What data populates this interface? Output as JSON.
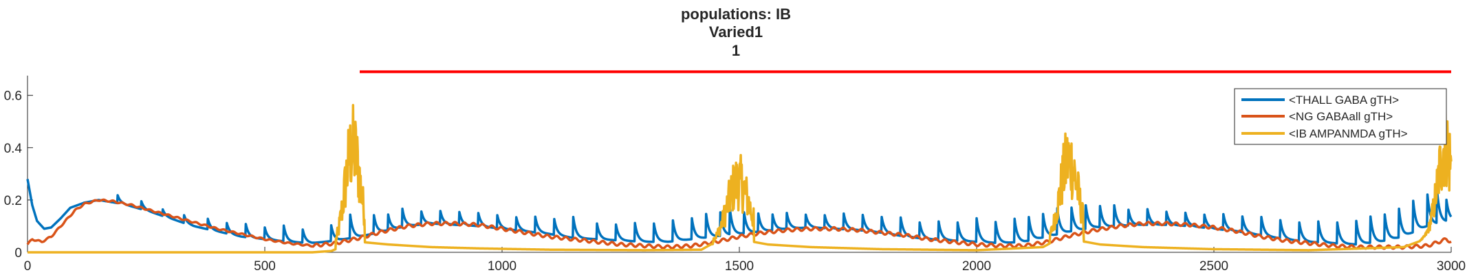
{
  "chart_data": {
    "type": "line",
    "title_lines": [
      "populations: IB",
      "Varied1",
      "1"
    ],
    "xlabel": "",
    "ylabel": "",
    "xlim": [
      0,
      3000
    ],
    "ylim": [
      0,
      0.72
    ],
    "x_ticks": [
      0,
      500,
      1000,
      1500,
      2000,
      2500,
      3000
    ],
    "x_tick_labels": [
      "0",
      "500",
      "1000",
      "1500",
      "2000",
      "2500",
      "3000"
    ],
    "y_ticks": [
      0,
      0.2,
      0.4,
      0.6
    ],
    "y_tick_labels": [
      "0",
      "0.2",
      "0.4",
      "0.6"
    ],
    "grid": false,
    "legend_position": "top-right",
    "event_bar": {
      "x_start": 700,
      "x_end": 3000,
      "y": 0.69,
      "color": "#ff0000"
    },
    "series": [
      {
        "name": "<THALL GABA gTH>",
        "color": "#0072BD",
        "baseline": {
          "x": [
            0,
            10,
            20,
            35,
            50,
            70,
            90,
            120,
            150,
            200,
            250,
            300,
            350,
            400,
            450,
            500,
            550,
            600,
            650,
            700,
            750,
            800,
            850,
            900,
            950,
            1000,
            1050,
            1100,
            1150,
            1200,
            1250,
            1300,
            1350,
            1400,
            1450,
            1500,
            1550,
            1600,
            1650,
            1700,
            1750,
            1800,
            1850,
            1900,
            1950,
            2000,
            2050,
            2100,
            2150,
            2200,
            2250,
            2300,
            2350,
            2400,
            2450,
            2500,
            2550,
            2600,
            2650,
            2700,
            2750,
            2800,
            2850,
            2900,
            2950,
            3000
          ],
          "y": [
            0.28,
            0.18,
            0.12,
            0.09,
            0.095,
            0.13,
            0.17,
            0.19,
            0.2,
            0.185,
            0.16,
            0.13,
            0.1,
            0.08,
            0.06,
            0.05,
            0.04,
            0.035,
            0.045,
            0.06,
            0.08,
            0.1,
            0.11,
            0.105,
            0.1,
            0.09,
            0.08,
            0.07,
            0.055,
            0.05,
            0.045,
            0.04,
            0.04,
            0.05,
            0.06,
            0.07,
            0.08,
            0.09,
            0.095,
            0.09,
            0.085,
            0.075,
            0.06,
            0.05,
            0.045,
            0.04,
            0.035,
            0.04,
            0.06,
            0.08,
            0.095,
            0.1,
            0.105,
            0.105,
            0.1,
            0.09,
            0.08,
            0.065,
            0.05,
            0.04,
            0.035,
            0.03,
            0.04,
            0.06,
            0.1,
            0.12
          ]
        },
        "spikes": {
          "x": [
            190,
            240,
            285,
            330,
            380,
            420,
            460,
            500,
            540,
            580,
            640,
            680,
            730,
            760,
            790,
            830,
            870,
            910,
            950,
            990,
            1030,
            1070,
            1110,
            1150,
            1200,
            1240,
            1280,
            1320,
            1360,
            1400,
            1430,
            1460,
            1480,
            1510,
            1540,
            1570,
            1600,
            1640,
            1680,
            1720,
            1760,
            1800,
            1840,
            1880,
            1920,
            1960,
            2000,
            2040,
            2080,
            2110,
            2140,
            2170,
            2200,
            2230,
            2260,
            2290,
            2320,
            2360,
            2400,
            2440,
            2480,
            2520,
            2560,
            2600,
            2640,
            2680,
            2720,
            2760,
            2800,
            2830,
            2860,
            2890,
            2920,
            2950,
            2970,
            2990
          ],
          "amp": [
            0.03,
            0.03,
            0.025,
            0.03,
            0.04,
            0.04,
            0.05,
            0.045,
            0.06,
            0.05,
            0.06,
            0.09,
            0.07,
            0.06,
            0.07,
            0.05,
            0.05,
            0.05,
            0.05,
            0.05,
            0.05,
            0.06,
            0.06,
            0.08,
            0.06,
            0.06,
            0.07,
            0.07,
            0.08,
            0.08,
            0.09,
            0.09,
            0.1,
            0.08,
            0.07,
            0.06,
            0.06,
            0.05,
            0.05,
            0.06,
            0.06,
            0.06,
            0.07,
            0.06,
            0.07,
            0.07,
            0.09,
            0.08,
            0.09,
            0.09,
            0.09,
            0.1,
            0.09,
            0.09,
            0.08,
            0.08,
            0.06,
            0.06,
            0.05,
            0.05,
            0.05,
            0.06,
            0.06,
            0.07,
            0.07,
            0.07,
            0.08,
            0.08,
            0.09,
            0.1,
            0.1,
            0.11,
            0.12,
            0.12,
            0.13,
            0.08
          ]
        }
      },
      {
        "name": "<NG GABAall gTH>",
        "color": "#D95319",
        "x": [
          0,
          10,
          30,
          50,
          70,
          100,
          120,
          150,
          180,
          220,
          260,
          300,
          350,
          400,
          450,
          500,
          550,
          600,
          650,
          700,
          750,
          800,
          850,
          900,
          950,
          1000,
          1050,
          1100,
          1150,
          1200,
          1250,
          1300,
          1350,
          1400,
          1450,
          1500,
          1550,
          1600,
          1650,
          1700,
          1750,
          1800,
          1850,
          1900,
          1950,
          2000,
          2050,
          2100,
          2150,
          2200,
          2250,
          2300,
          2350,
          2400,
          2450,
          2500,
          2550,
          2600,
          2650,
          2700,
          2750,
          2800,
          2850,
          2900,
          2950,
          2990,
          3000
        ],
        "y": [
          0.03,
          0.05,
          0.04,
          0.06,
          0.1,
          0.16,
          0.185,
          0.2,
          0.195,
          0.18,
          0.16,
          0.14,
          0.115,
          0.09,
          0.07,
          0.05,
          0.035,
          0.025,
          0.035,
          0.055,
          0.08,
          0.1,
          0.11,
          0.11,
          0.105,
          0.09,
          0.075,
          0.06,
          0.05,
          0.04,
          0.03,
          0.025,
          0.02,
          0.025,
          0.04,
          0.06,
          0.075,
          0.085,
          0.09,
          0.09,
          0.085,
          0.075,
          0.065,
          0.05,
          0.04,
          0.03,
          0.025,
          0.025,
          0.04,
          0.065,
          0.085,
          0.1,
          0.11,
          0.11,
          0.105,
          0.095,
          0.08,
          0.06,
          0.045,
          0.035,
          0.025,
          0.02,
          0.02,
          0.02,
          0.025,
          0.05,
          0.04
        ]
      },
      {
        "name": "<IB AMPANMDA gTH>",
        "color": "#EDB120",
        "baseline": {
          "x": [
            0,
            600,
            640,
            660,
            700,
            760,
            850,
            950,
            1100,
            1300,
            1420,
            1440,
            1470,
            1530,
            1560,
            1650,
            1800,
            2000,
            2140,
            2160,
            2180,
            2230,
            2260,
            2350,
            2500,
            2700,
            2900,
            2930,
            2960,
            2990,
            3000
          ],
          "y": [
            0.0,
            0.0,
            0.005,
            0.02,
            0.04,
            0.03,
            0.02,
            0.015,
            0.01,
            0.008,
            0.01,
            0.03,
            0.04,
            0.04,
            0.03,
            0.02,
            0.012,
            0.008,
            0.02,
            0.04,
            0.05,
            0.04,
            0.03,
            0.02,
            0.012,
            0.008,
            0.02,
            0.04,
            0.06,
            0.05,
            0.0
          ]
        },
        "bursts": [
          {
            "x_start": 650,
            "x_end": 710,
            "peak_x": 685,
            "peak_y": 0.54
          },
          {
            "x_start": 1445,
            "x_end": 1530,
            "peak_x": 1498,
            "peak_y": 0.34
          },
          {
            "x_start": 2155,
            "x_end": 2225,
            "peak_x": 2195,
            "peak_y": 0.45
          },
          {
            "x_start": 2935,
            "x_end": 3000,
            "peak_x": 2990,
            "peak_y": 0.54
          }
        ]
      }
    ]
  }
}
